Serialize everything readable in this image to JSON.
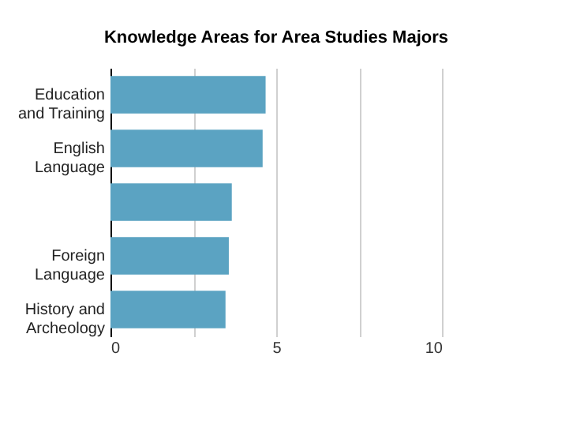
{
  "chart_data": {
    "type": "bar",
    "orientation": "horizontal",
    "title": "Knowledge Areas for Area Studies Majors",
    "categories": [
      "Education\nand Training",
      "English\nLanguage",
      null,
      "Foreign\nLanguage",
      "History and\nArcheology"
    ],
    "values": [
      4.68,
      4.59,
      3.66,
      3.57,
      3.47
    ],
    "color": "#5ba3c2",
    "xlim": [
      0,
      10
    ],
    "xticks": [
      0,
      {
        "value": 2.5,
        "label": null
      },
      5,
      {
        "value": 7.5,
        "label": null
      },
      10
    ],
    "grid": "x"
  }
}
